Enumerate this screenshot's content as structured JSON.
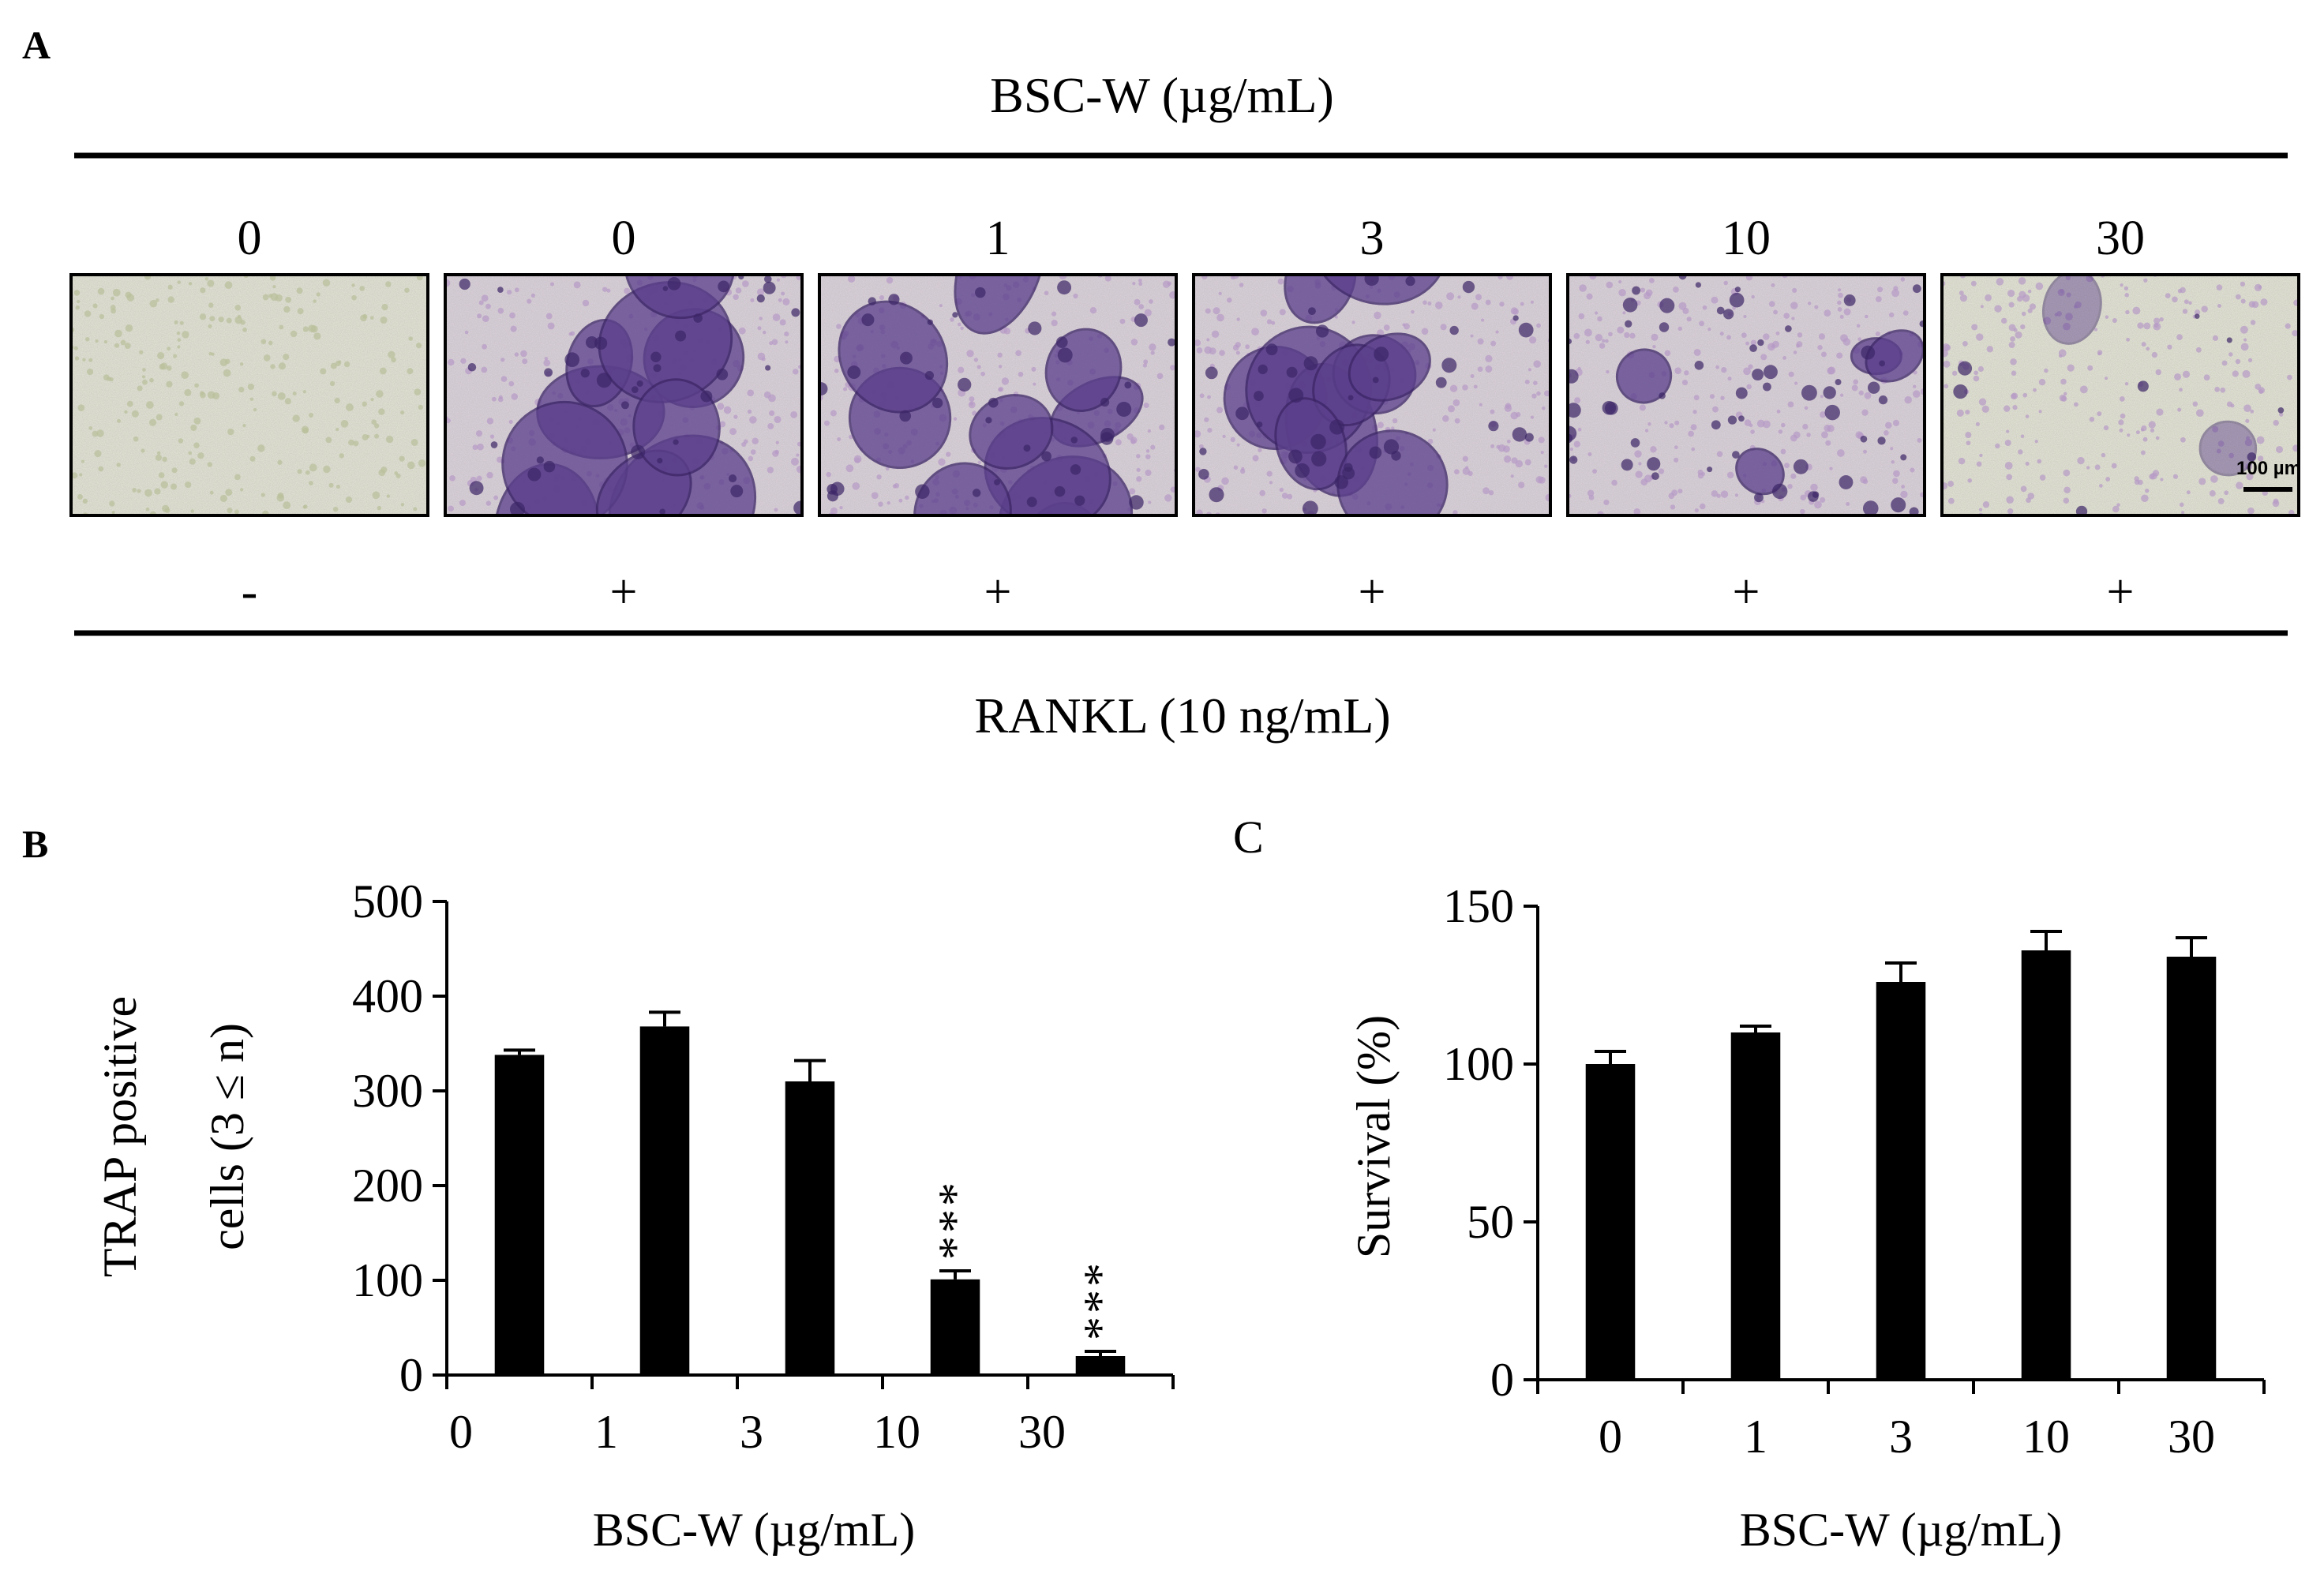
{
  "panel_a": {
    "letter": "A",
    "top_label": "BSC-W (µg/mL)",
    "bottom_label": "RANKL (10 ng/mL)",
    "scale_bar_label": "100 µm",
    "columns": [
      {
        "dose": "0",
        "rankl": "-",
        "stain": "none"
      },
      {
        "dose": "0",
        "rankl": "+",
        "stain": "heavy"
      },
      {
        "dose": "1",
        "rankl": "+",
        "stain": "heavy"
      },
      {
        "dose": "3",
        "rankl": "+",
        "stain": "heavy"
      },
      {
        "dose": "10",
        "rankl": "+",
        "stain": "moderate"
      },
      {
        "dose": "30",
        "rankl": "+",
        "stain": "light"
      }
    ],
    "colors": {
      "stain": "#5b3f8c",
      "stain_dark": "#3c2566",
      "background_plain": "#e6e7dc",
      "background_stained": "#ddd2e4"
    }
  },
  "chart_data": [
    {
      "type": "bar",
      "panel_letter": "B",
      "categories": [
        "0",
        "1",
        "3",
        "10",
        "30"
      ],
      "values": [
        338,
        368,
        310,
        101,
        20
      ],
      "errors": [
        5,
        15,
        22,
        9,
        5
      ],
      "annotations": [
        "",
        "",
        "",
        "***",
        "***"
      ],
      "ylim": [
        0,
        500
      ],
      "yticks": [
        0,
        100,
        200,
        300,
        400,
        500
      ],
      "xlabel": "BSC-W (µg/mL)",
      "ylabel_lines": [
        "TRAP positive",
        "cells (3 ≤ n)"
      ],
      "bar_color": "#000000"
    },
    {
      "type": "bar",
      "panel_letter": "C",
      "categories": [
        "0",
        "1",
        "3",
        "10",
        "30"
      ],
      "values": [
        100,
        110,
        126,
        136,
        134
      ],
      "errors": [
        4,
        2,
        6,
        6,
        6
      ],
      "annotations": [
        "",
        "",
        "",
        "",
        ""
      ],
      "ylim": [
        0,
        150
      ],
      "yticks": [
        0,
        50,
        100,
        150
      ],
      "xlabel": "BSC-W (µg/mL)",
      "ylabel": "Survival (%)",
      "bar_color": "#000000"
    }
  ]
}
